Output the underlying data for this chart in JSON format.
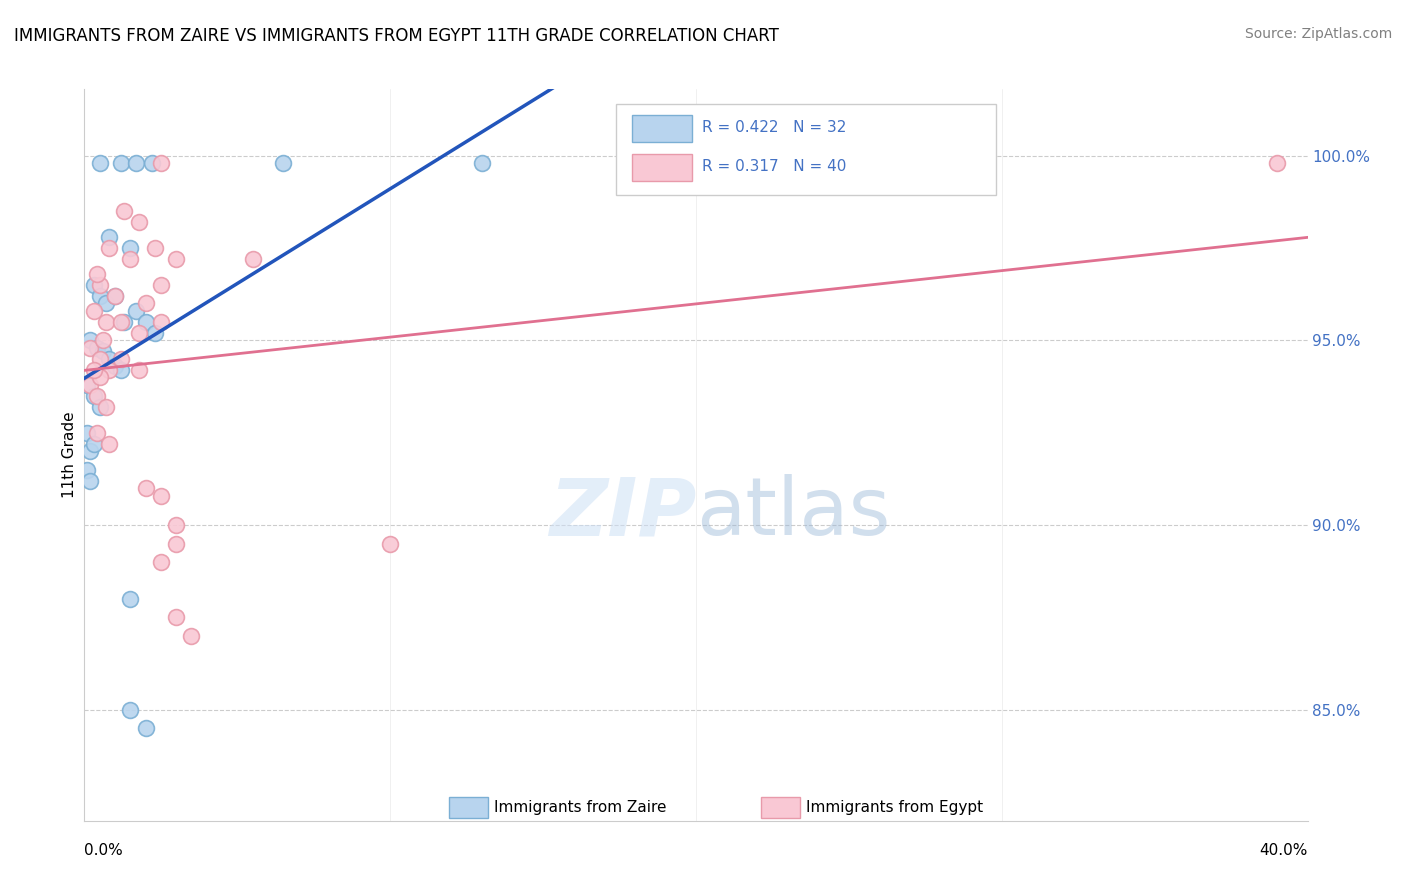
{
  "title": "IMMIGRANTS FROM ZAIRE VS IMMIGRANTS FROM EGYPT 11TH GRADE CORRELATION CHART",
  "source": "Source: ZipAtlas.com",
  "ylabel": "11th Grade",
  "yticks": [
    85.0,
    90.0,
    95.0,
    100.0
  ],
  "ytick_labels": [
    "85.0%",
    "90.0%",
    "95.0%",
    "100.0%"
  ],
  "xmin": 0.0,
  "xmax": 40.0,
  "ymin": 82.0,
  "ymax": 101.8,
  "watermark_zip": "ZIP",
  "watermark_atlas": "atlas",
  "blue_points": [
    [
      0.5,
      99.8
    ],
    [
      1.2,
      99.8
    ],
    [
      1.7,
      99.8
    ],
    [
      2.2,
      99.8
    ],
    [
      6.5,
      99.8
    ],
    [
      13.0,
      99.8
    ],
    [
      0.8,
      97.8
    ],
    [
      1.5,
      97.5
    ],
    [
      0.3,
      96.5
    ],
    [
      0.5,
      96.2
    ],
    [
      0.7,
      96.0
    ],
    [
      1.0,
      96.2
    ],
    [
      1.3,
      95.5
    ],
    [
      1.7,
      95.8
    ],
    [
      2.0,
      95.5
    ],
    [
      2.3,
      95.2
    ],
    [
      0.2,
      95.0
    ],
    [
      0.4,
      94.8
    ],
    [
      0.6,
      94.7
    ],
    [
      0.8,
      94.5
    ],
    [
      1.0,
      94.3
    ],
    [
      1.2,
      94.2
    ],
    [
      0.1,
      93.8
    ],
    [
      0.3,
      93.5
    ],
    [
      0.5,
      93.2
    ],
    [
      0.1,
      92.5
    ],
    [
      0.2,
      92.0
    ],
    [
      0.3,
      92.2
    ],
    [
      0.1,
      91.5
    ],
    [
      0.2,
      91.2
    ],
    [
      1.5,
      88.0
    ],
    [
      1.5,
      85.0
    ],
    [
      2.0,
      84.5
    ]
  ],
  "pink_points": [
    [
      2.5,
      99.8
    ],
    [
      1.3,
      98.5
    ],
    [
      1.8,
      98.2
    ],
    [
      0.8,
      97.5
    ],
    [
      1.5,
      97.2
    ],
    [
      2.3,
      97.5
    ],
    [
      3.0,
      97.2
    ],
    [
      5.5,
      97.2
    ],
    [
      0.5,
      96.5
    ],
    [
      1.0,
      96.2
    ],
    [
      2.0,
      96.0
    ],
    [
      2.5,
      96.5
    ],
    [
      0.3,
      95.8
    ],
    [
      0.7,
      95.5
    ],
    [
      1.2,
      95.5
    ],
    [
      1.8,
      95.2
    ],
    [
      2.5,
      95.5
    ],
    [
      0.2,
      94.8
    ],
    [
      0.5,
      94.5
    ],
    [
      0.8,
      94.2
    ],
    [
      1.2,
      94.5
    ],
    [
      1.8,
      94.2
    ],
    [
      0.2,
      93.8
    ],
    [
      0.4,
      93.5
    ],
    [
      0.7,
      93.2
    ],
    [
      0.4,
      92.5
    ],
    [
      0.8,
      92.2
    ],
    [
      2.0,
      91.0
    ],
    [
      2.5,
      90.8
    ],
    [
      3.0,
      90.0
    ],
    [
      3.0,
      89.5
    ],
    [
      2.5,
      89.0
    ],
    [
      10.0,
      89.5
    ],
    [
      3.0,
      87.5
    ],
    [
      3.5,
      87.0
    ],
    [
      0.5,
      94.0
    ],
    [
      0.3,
      94.2
    ],
    [
      0.6,
      95.0
    ],
    [
      0.4,
      96.8
    ],
    [
      39.0,
      99.8
    ]
  ]
}
